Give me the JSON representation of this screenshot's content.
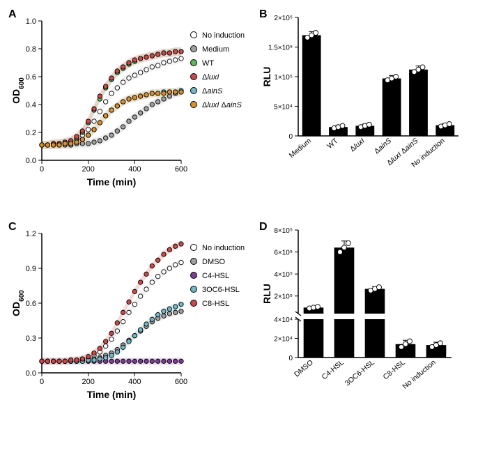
{
  "panelA": {
    "label": "A",
    "type": "scatter-line",
    "xlabel": "Time (min)",
    "ylabel": "OD",
    "ylabel_sub": "600",
    "xlim": [
      0,
      600
    ],
    "ylim": [
      0.0,
      1.0
    ],
    "xticks": [
      0,
      200,
      400,
      600
    ],
    "yticks": [
      0.0,
      0.2,
      0.4,
      0.6,
      0.8,
      1.0
    ],
    "series": [
      {
        "name": "No induction",
        "fill": "#ffffff",
        "shade": "#e8e8e8",
        "x": [
          0,
          25,
          50,
          75,
          100,
          125,
          150,
          175,
          200,
          225,
          250,
          275,
          300,
          325,
          350,
          375,
          400,
          425,
          450,
          475,
          500,
          525,
          550,
          575,
          600
        ],
        "y": [
          0.11,
          0.11,
          0.11,
          0.11,
          0.12,
          0.13,
          0.15,
          0.18,
          0.22,
          0.28,
          0.35,
          0.42,
          0.48,
          0.52,
          0.56,
          0.59,
          0.61,
          0.63,
          0.65,
          0.67,
          0.68,
          0.7,
          0.71,
          0.72,
          0.73
        ]
      },
      {
        "name": "Medium",
        "fill": "#a0a0a0",
        "shade": "#d8d8d8",
        "x": [
          0,
          25,
          50,
          75,
          100,
          125,
          150,
          175,
          200,
          225,
          250,
          275,
          300,
          325,
          350,
          375,
          400,
          425,
          450,
          475,
          500,
          525,
          550,
          575,
          600
        ],
        "y": [
          0.11,
          0.11,
          0.11,
          0.11,
          0.11,
          0.11,
          0.12,
          0.12,
          0.12,
          0.13,
          0.14,
          0.16,
          0.18,
          0.21,
          0.24,
          0.28,
          0.31,
          0.34,
          0.37,
          0.4,
          0.42,
          0.44,
          0.46,
          0.48,
          0.49
        ]
      },
      {
        "name": "WT",
        "fill": "#5db859",
        "shade": "#b9e2b8",
        "x": [
          0,
          25,
          50,
          75,
          100,
          125,
          150,
          175,
          200,
          225,
          250,
          275,
          300,
          325,
          350,
          375,
          400,
          425,
          450,
          475,
          500,
          525,
          550,
          575,
          600
        ],
        "y": [
          0.11,
          0.11,
          0.12,
          0.12,
          0.13,
          0.14,
          0.16,
          0.2,
          0.27,
          0.36,
          0.44,
          0.52,
          0.58,
          0.63,
          0.66,
          0.69,
          0.71,
          0.73,
          0.74,
          0.75,
          0.76,
          0.77,
          0.77,
          0.78,
          0.78
        ]
      },
      {
        "name": "ΔluxI",
        "fill": "#c94a4a",
        "shade": "#f0b4b4",
        "x": [
          0,
          25,
          50,
          75,
          100,
          125,
          150,
          175,
          200,
          225,
          250,
          275,
          300,
          325,
          350,
          375,
          400,
          425,
          450,
          475,
          500,
          525,
          550,
          575,
          600
        ],
        "y": [
          0.11,
          0.11,
          0.12,
          0.12,
          0.13,
          0.14,
          0.17,
          0.21,
          0.28,
          0.37,
          0.46,
          0.53,
          0.59,
          0.64,
          0.67,
          0.7,
          0.72,
          0.73,
          0.74,
          0.75,
          0.76,
          0.77,
          0.77,
          0.78,
          0.78
        ]
      },
      {
        "name": "ΔainS",
        "fill": "#74b6c4",
        "shade": "#c8e4ea",
        "x": [
          0,
          25,
          50,
          75,
          100,
          125,
          150,
          175,
          200,
          225,
          250,
          275,
          300,
          325,
          350,
          375,
          400,
          425,
          450,
          475,
          500,
          525,
          550,
          575,
          600
        ],
        "y": [
          0.11,
          0.11,
          0.11,
          0.11,
          0.12,
          0.12,
          0.13,
          0.15,
          0.18,
          0.22,
          0.27,
          0.32,
          0.36,
          0.39,
          0.42,
          0.44,
          0.45,
          0.46,
          0.47,
          0.48,
          0.48,
          0.49,
          0.49,
          0.49,
          0.5
        ]
      },
      {
        "name": "ΔluxI ΔainS",
        "fill": "#d8902e",
        "shade": "#f1d3a8",
        "x": [
          0,
          25,
          50,
          75,
          100,
          125,
          150,
          175,
          200,
          225,
          250,
          275,
          300,
          325,
          350,
          375,
          400,
          425,
          450,
          475,
          500,
          525,
          550,
          575,
          600
        ],
        "y": [
          0.11,
          0.11,
          0.11,
          0.11,
          0.12,
          0.12,
          0.13,
          0.15,
          0.18,
          0.22,
          0.27,
          0.32,
          0.36,
          0.39,
          0.42,
          0.44,
          0.45,
          0.46,
          0.47,
          0.48,
          0.48,
          0.48,
          0.49,
          0.49,
          0.49
        ]
      }
    ],
    "legend": [
      {
        "label": "No induction",
        "fill": "#ffffff",
        "italic_parts": []
      },
      {
        "label": "Medium",
        "fill": "#a0a0a0",
        "italic_parts": []
      },
      {
        "label": "WT",
        "fill": "#5db859",
        "italic_parts": []
      },
      {
        "label": "ΔluxI",
        "fill": "#c94a4a",
        "italic_parts": [
          "luxI"
        ]
      },
      {
        "label": "ΔainS",
        "fill": "#74b6c4",
        "italic_parts": [
          "ainS"
        ]
      },
      {
        "label": "ΔluxI ΔainS",
        "fill": "#d8902e",
        "italic_parts": [
          "luxI",
          "ainS"
        ]
      }
    ]
  },
  "panelB": {
    "label": "B",
    "type": "bar",
    "ylabel": "RLU",
    "ylim": [
      0,
      200000
    ],
    "yticks": [
      0,
      50000,
      100000,
      150000,
      200000
    ],
    "ytick_labels": [
      "0",
      "5×10⁴",
      "1×10⁵",
      "1.5×10⁵",
      "2×10⁵"
    ],
    "bar_color": "#000000",
    "point_fill": "#ffffff",
    "categories": [
      "Medium",
      "WT",
      "ΔluxI",
      "ΔainS",
      "ΔluxI ΔainS",
      "No induction"
    ],
    "category_italic": [
      false,
      false,
      true,
      true,
      true,
      false
    ],
    "values": [
      170000,
      15000,
      17000,
      97000,
      112000,
      18000
    ],
    "errors": [
      6000,
      3000,
      3000,
      5000,
      6000,
      3000
    ],
    "points": [
      [
        166000,
        170000,
        174000
      ],
      [
        13000,
        15000,
        17000
      ],
      [
        15000,
        17000,
        19000
      ],
      [
        94000,
        97000,
        100000
      ],
      [
        108000,
        112000,
        116000
      ],
      [
        16000,
        18000,
        20000
      ]
    ]
  },
  "panelC": {
    "label": "C",
    "type": "scatter-line",
    "xlabel": "Time (min)",
    "ylabel": "OD",
    "ylabel_sub": "600",
    "xlim": [
      0,
      600
    ],
    "ylim": [
      0.0,
      1.2
    ],
    "xticks": [
      0,
      200,
      400,
      600
    ],
    "yticks": [
      0.0,
      0.3,
      0.6,
      0.9,
      1.2
    ],
    "series": [
      {
        "name": "No induction",
        "fill": "#ffffff",
        "shade": "#e8e8e8",
        "x": [
          0,
          25,
          50,
          75,
          100,
          125,
          150,
          175,
          200,
          225,
          250,
          275,
          300,
          325,
          350,
          375,
          400,
          425,
          450,
          475,
          500,
          525,
          550,
          575,
          600
        ],
        "y": [
          0.1,
          0.1,
          0.1,
          0.1,
          0.1,
          0.11,
          0.11,
          0.12,
          0.13,
          0.15,
          0.18,
          0.23,
          0.29,
          0.36,
          0.44,
          0.52,
          0.59,
          0.66,
          0.72,
          0.78,
          0.83,
          0.87,
          0.9,
          0.93,
          0.95
        ]
      },
      {
        "name": "DMSO",
        "fill": "#a0a0a0",
        "shade": "#d8d8d8",
        "x": [
          0,
          25,
          50,
          75,
          100,
          125,
          150,
          175,
          200,
          225,
          250,
          275,
          300,
          325,
          350,
          375,
          400,
          425,
          450,
          475,
          500,
          525,
          550,
          575,
          600
        ],
        "y": [
          0.1,
          0.1,
          0.1,
          0.1,
          0.1,
          0.1,
          0.1,
          0.11,
          0.11,
          0.12,
          0.13,
          0.15,
          0.17,
          0.2,
          0.24,
          0.28,
          0.32,
          0.36,
          0.4,
          0.44,
          0.47,
          0.49,
          0.51,
          0.52,
          0.53
        ]
      },
      {
        "name": "C4-HSL",
        "fill": "#7a3f8e",
        "shade": "#d0b5da",
        "x": [
          0,
          25,
          50,
          75,
          100,
          125,
          150,
          175,
          200,
          225,
          250,
          275,
          300,
          325,
          350,
          375,
          400,
          425,
          450,
          475,
          500,
          525,
          550,
          575,
          600
        ],
        "y": [
          0.1,
          0.1,
          0.1,
          0.1,
          0.1,
          0.1,
          0.1,
          0.1,
          0.1,
          0.1,
          0.1,
          0.1,
          0.1,
          0.1,
          0.1,
          0.1,
          0.1,
          0.1,
          0.1,
          0.1,
          0.1,
          0.1,
          0.1,
          0.1,
          0.1
        ]
      },
      {
        "name": "3OC6-HSL",
        "fill": "#74b6c4",
        "shade": "#c8e4ea",
        "x": [
          0,
          25,
          50,
          75,
          100,
          125,
          150,
          175,
          200,
          225,
          250,
          275,
          300,
          325,
          350,
          375,
          400,
          425,
          450,
          475,
          500,
          525,
          550,
          575,
          600
        ],
        "y": [
          0.1,
          0.1,
          0.1,
          0.1,
          0.1,
          0.1,
          0.1,
          0.1,
          0.11,
          0.11,
          0.12,
          0.13,
          0.15,
          0.18,
          0.22,
          0.27,
          0.32,
          0.37,
          0.42,
          0.46,
          0.5,
          0.53,
          0.55,
          0.57,
          0.59
        ]
      },
      {
        "name": "C8-HSL",
        "fill": "#c94a4a",
        "shade": "#f0b4b4",
        "x": [
          0,
          25,
          50,
          75,
          100,
          125,
          150,
          175,
          200,
          225,
          250,
          275,
          300,
          325,
          350,
          375,
          400,
          425,
          450,
          475,
          500,
          525,
          550,
          575,
          600
        ],
        "y": [
          0.1,
          0.1,
          0.1,
          0.1,
          0.1,
          0.11,
          0.11,
          0.12,
          0.14,
          0.17,
          0.21,
          0.27,
          0.34,
          0.43,
          0.52,
          0.61,
          0.7,
          0.78,
          0.85,
          0.92,
          0.97,
          1.02,
          1.06,
          1.09,
          1.11
        ]
      }
    ],
    "legend": [
      {
        "label": "No induction",
        "fill": "#ffffff"
      },
      {
        "label": "DMSO",
        "fill": "#a0a0a0"
      },
      {
        "label": "C4-HSL",
        "fill": "#7a3f8e"
      },
      {
        "label": "3OC6-HSL",
        "fill": "#74b6c4"
      },
      {
        "label": "C8-HSL",
        "fill": "#c94a4a"
      }
    ]
  },
  "panelD": {
    "label": "D",
    "type": "bar-broken",
    "ylabel": "RLU",
    "bar_color": "#000000",
    "point_fill": "#ffffff",
    "lower_ylim": [
      0,
      40000
    ],
    "upper_ylim": [
      40000,
      800000
    ],
    "lower_yticks": [
      0,
      20000,
      40000
    ],
    "lower_ytick_labels": [
      "0",
      "2×10⁴",
      "4×10⁴"
    ],
    "upper_yticks": [
      200000,
      400000,
      600000,
      800000
    ],
    "upper_ytick_labels": [
      "2×10⁵",
      "4×10⁵",
      "6×10⁵",
      "8×10⁵"
    ],
    "categories": [
      "DMSO",
      "C4-HSL",
      "3OC6-HSL",
      "C8-HSL",
      "No induction"
    ],
    "values": [
      95000,
      640000,
      265000,
      14000,
      13000
    ],
    "errors": [
      8000,
      60000,
      20000,
      4000,
      3000
    ],
    "points": [
      [
        88000,
        95000,
        102000
      ],
      [
        600000,
        640000,
        680000
      ],
      [
        250000,
        265000,
        280000
      ],
      [
        11000,
        14000,
        17000
      ],
      [
        11000,
        13000,
        15000
      ]
    ]
  },
  "colors": {
    "axis": "#000000",
    "grid": "#ffffff",
    "point_stroke": "#000000",
    "bar": "#000000",
    "bg": "#ffffff"
  },
  "marker_radius": 3.2,
  "label_fontsize": 14,
  "tick_fontsize": 11
}
